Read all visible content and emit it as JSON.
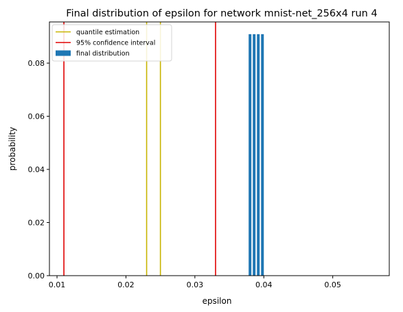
{
  "chart_data": {
    "type": "bar",
    "title": "Final distribution of epsilon for network mnist-net_256x4 run 4",
    "xlabel": "epsilon",
    "ylabel": "probability",
    "xlim": [
      0.0089,
      0.0582
    ],
    "ylim": [
      0,
      0.0955
    ],
    "xticks": [
      0.01,
      0.02,
      0.03,
      0.04,
      0.05
    ],
    "xtick_labels": [
      "0.01",
      "0.02",
      "0.03",
      "0.04",
      "0.05"
    ],
    "yticks": [
      0,
      0.02,
      0.04,
      0.06,
      0.08
    ],
    "ytick_labels": [
      "0.00",
      "0.02",
      "0.04",
      "0.06",
      "0.08"
    ],
    "grid": false,
    "legend_position": "top-left",
    "bars": {
      "name": "final distribution",
      "color": "#1f77b4",
      "width": 0.0004,
      "x": [
        0.038,
        0.0386,
        0.0392,
        0.0398
      ],
      "values": [
        0.0909,
        0.0909,
        0.0909,
        0.0909
      ]
    },
    "vlines": [
      {
        "series": "quantile estimation",
        "color": "#c8b400",
        "x": 0.023
      },
      {
        "series": "quantile estimation",
        "color": "#c8b400",
        "x": 0.025
      },
      {
        "series": "95% confidence interval",
        "color": "#e00000",
        "x": 0.011
      },
      {
        "series": "95% confidence interval",
        "color": "#e00000",
        "x": 0.033
      }
    ],
    "legend": [
      {
        "label": "quantile estimation",
        "kind": "line",
        "color": "#c8b400"
      },
      {
        "label": "95% confidence interval",
        "kind": "line",
        "color": "#e00000"
      },
      {
        "label": "final distribution",
        "kind": "patch",
        "color": "#1f77b4"
      }
    ]
  }
}
